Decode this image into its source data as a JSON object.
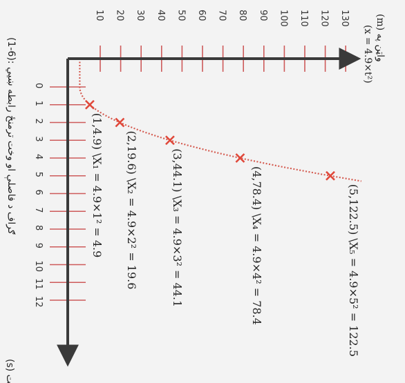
{
  "chart_data": {
    "type": "scatter",
    "orientation": "rotated-90",
    "x_axis_label": "(s) وخت",
    "y_axis_label": "(m) واټن په",
    "formula": "(x = 4.9×t²)",
    "caption": "(1-6): ګراف د فاصلې او وخت ترمنځ رابطه ښیي",
    "x_ticks": [
      "0",
      "1",
      "2",
      "3",
      "4",
      "5",
      "6",
      "7",
      "8",
      "9",
      "10",
      "11",
      "12"
    ],
    "y_ticks": [
      "10",
      "20",
      "30",
      "40",
      "50",
      "60",
      "70",
      "80",
      "90",
      "100",
      "110",
      "120",
      "130"
    ],
    "x_range": [
      0,
      12
    ],
    "y_range": [
      0,
      130
    ],
    "points": [
      {
        "x": 1,
        "y": 4.9,
        "label": "(1,4.9)",
        "eq": "\\X₁ = 4.9×1² = 4.9"
      },
      {
        "x": 2,
        "y": 19.6,
        "label": "(2,19.6)",
        "eq": "\\X₂ = 4.9×2² = 19.6"
      },
      {
        "x": 3,
        "y": 44.1,
        "label": "(3,44.1)",
        "eq": "\\X₃ = 4.9×3² = 44.1"
      },
      {
        "x": 4,
        "y": 78.4,
        "label": "(4,78.4)",
        "eq": "\\X₄ = 4.9×4² = 78.4"
      },
      {
        "x": 5,
        "y": 122.5,
        "label": "(5,122.5)",
        "eq": "\\X₅ = 4.9×5² = 122.5"
      }
    ],
    "colors": {
      "axis": "#3a3a3a",
      "tick": "#cd5a5a",
      "marker": "#e0483a",
      "curve": "#d45a4f"
    }
  }
}
